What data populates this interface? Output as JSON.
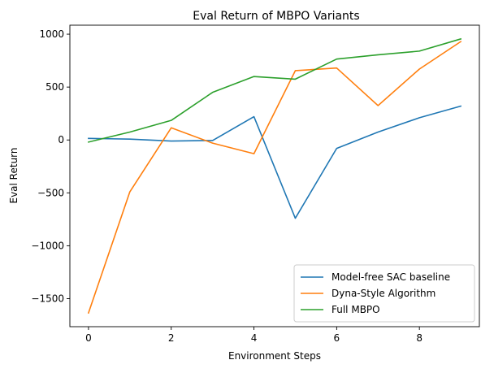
{
  "chart_data": {
    "type": "line",
    "title": "Eval Return of MBPO Variants",
    "xlabel": "Environment Steps",
    "ylabel": "Eval Return",
    "x": [
      0,
      1,
      2,
      3,
      4,
      5,
      6,
      7,
      8,
      9
    ],
    "xlim": [
      -0.45,
      9.45
    ],
    "ylim": [
      -1765,
      1085
    ],
    "xticks": [
      0,
      2,
      4,
      6,
      8
    ],
    "yticks": [
      -1500,
      -1000,
      -500,
      0,
      500,
      1000
    ],
    "xtick_labels": [
      "0",
      "2",
      "4",
      "6",
      "8"
    ],
    "ytick_labels": [
      "−1500",
      "−1000",
      "−500",
      "0",
      "500",
      "1000"
    ],
    "grid": false,
    "legend_position": "lower-right",
    "series": [
      {
        "name": "Model-free SAC baseline",
        "color": "#1f77b4",
        "values": [
          15,
          8,
          -10,
          -5,
          220,
          -740,
          -80,
          75,
          210,
          320
        ]
      },
      {
        "name": "Dyna-Style Algorithm",
        "color": "#ff7f0e",
        "values": [
          -1635,
          -490,
          115,
          -30,
          -130,
          655,
          680,
          325,
          670,
          930
        ]
      },
      {
        "name": "Full MBPO",
        "color": "#2ca02c",
        "values": [
          -20,
          75,
          185,
          450,
          600,
          575,
          765,
          805,
          840,
          955
        ]
      }
    ]
  }
}
